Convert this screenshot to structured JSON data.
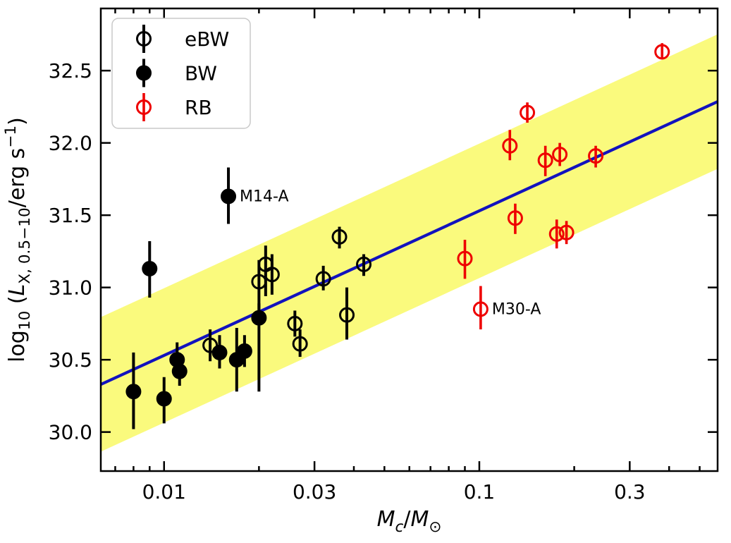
{
  "chart_data": {
    "type": "scatter",
    "title": "",
    "xlabel_plain": "M_c/M_sun",
    "ylabel_plain": "log10 (L_X,0.5-10 / erg s^-1)",
    "xlabel_parts": [
      {
        "t": "M",
        "italic": true
      },
      {
        "t": "c",
        "italic": true,
        "shift": "sub"
      },
      {
        "t": "/"
      },
      {
        "t": "M",
        "italic": true
      },
      {
        "t": "⊙",
        "shift": "sub"
      }
    ],
    "ylabel_parts": [
      {
        "t": "log"
      },
      {
        "t": "10",
        "shift": "sub"
      },
      {
        "t": " ("
      },
      {
        "t": "L",
        "italic": true
      },
      {
        "t": "X, 0.5−10",
        "shift": "sub"
      },
      {
        "t": "/erg s"
      },
      {
        "t": "−1",
        "shift": "sup"
      },
      {
        "t": ")"
      }
    ],
    "xscale": "log",
    "yscale": "linear",
    "xlim": [
      0.0063,
      0.57
    ],
    "ylim": [
      29.73,
      32.93
    ],
    "grid": false,
    "x_major_ticks": [
      0.01,
      0.03,
      0.1,
      0.3
    ],
    "x_major_tick_labels": [
      "0.01",
      "0.03",
      "0.1",
      "0.3"
    ],
    "x_minor_ticks": [
      0.007,
      0.008,
      0.009,
      0.02,
      0.04,
      0.05,
      0.06,
      0.07,
      0.08,
      0.09,
      0.2,
      0.4,
      0.5
    ],
    "y_ticks": [
      30.0,
      30.5,
      31.0,
      31.5,
      32.0,
      32.5
    ],
    "y_tick_labels": [
      "30.0",
      "30.5",
      "31.0",
      "31.5",
      "32.0",
      "32.5"
    ],
    "legend": {
      "position": "upper-left",
      "entries": [
        {
          "label": "eBW",
          "marker": "open-circle",
          "color": "#000000"
        },
        {
          "label": "BW",
          "marker": "filled-circle",
          "color": "#000000"
        },
        {
          "label": "RB",
          "marker": "open-circle",
          "color": "#ee0000"
        }
      ]
    },
    "series": [
      {
        "name": "eBW",
        "marker": "open-circle",
        "color": "#000000",
        "points": [
          {
            "m": 0.014,
            "l": 30.6,
            "lo": 30.49,
            "hi": 30.71
          },
          {
            "m": 0.02,
            "l": 31.04,
            "lo": 30.84,
            "hi": 31.19
          },
          {
            "m": 0.021,
            "l": 31.16,
            "lo": 30.94,
            "hi": 31.29
          },
          {
            "m": 0.022,
            "l": 31.09,
            "lo": 30.95,
            "hi": 31.23
          },
          {
            "m": 0.026,
            "l": 30.75,
            "lo": 30.66,
            "hi": 30.84
          },
          {
            "m": 0.027,
            "l": 30.61,
            "lo": 30.52,
            "hi": 30.71
          },
          {
            "m": 0.032,
            "l": 31.06,
            "lo": 30.98,
            "hi": 31.15
          },
          {
            "m": 0.036,
            "l": 31.35,
            "lo": 31.27,
            "hi": 31.42
          },
          {
            "m": 0.038,
            "l": 30.81,
            "lo": 30.64,
            "hi": 31.0
          },
          {
            "m": 0.043,
            "l": 31.16,
            "lo": 31.08,
            "hi": 31.23
          }
        ]
      },
      {
        "name": "BW",
        "marker": "filled-circle",
        "color": "#000000",
        "points": [
          {
            "m": 0.008,
            "l": 30.28,
            "lo": 30.02,
            "hi": 30.55
          },
          {
            "m": 0.009,
            "l": 31.13,
            "lo": 30.93,
            "hi": 31.32
          },
          {
            "m": 0.01,
            "l": 30.23,
            "lo": 30.06,
            "hi": 30.38
          },
          {
            "m": 0.011,
            "l": 30.5,
            "lo": 30.39,
            "hi": 30.62
          },
          {
            "m": 0.0112,
            "l": 30.42,
            "lo": 30.32,
            "hi": 30.49
          },
          {
            "m": 0.015,
            "l": 30.55,
            "lo": 30.44,
            "hi": 30.67
          },
          {
            "m": 0.016,
            "l": 31.63,
            "lo": 31.44,
            "hi": 31.83,
            "label": "M14-A"
          },
          {
            "m": 0.017,
            "l": 30.5,
            "lo": 30.28,
            "hi": 30.72
          },
          {
            "m": 0.018,
            "l": 30.56,
            "lo": 30.45,
            "hi": 30.67
          },
          {
            "m": 0.02,
            "l": 30.79,
            "lo": 30.28,
            "hi": 30.89
          }
        ]
      },
      {
        "name": "RB",
        "marker": "open-circle",
        "color": "#ee0000",
        "points": [
          {
            "m": 0.09,
            "l": 31.2,
            "lo": 31.06,
            "hi": 31.33
          },
          {
            "m": 0.101,
            "l": 30.85,
            "lo": 30.71,
            "hi": 31.01,
            "label": "M30-A"
          },
          {
            "m": 0.125,
            "l": 31.98,
            "lo": 31.88,
            "hi": 32.09
          },
          {
            "m": 0.13,
            "l": 31.48,
            "lo": 31.37,
            "hi": 31.58
          },
          {
            "m": 0.142,
            "l": 32.21,
            "lo": 32.14,
            "hi": 32.28
          },
          {
            "m": 0.162,
            "l": 31.88,
            "lo": 31.77,
            "hi": 31.98
          },
          {
            "m": 0.176,
            "l": 31.37,
            "lo": 31.27,
            "hi": 31.47
          },
          {
            "m": 0.18,
            "l": 31.92,
            "lo": 31.84,
            "hi": 32.0
          },
          {
            "m": 0.189,
            "l": 31.38,
            "lo": 31.3,
            "hi": 31.46
          },
          {
            "m": 0.234,
            "l": 31.91,
            "lo": 31.83,
            "hi": 31.98
          },
          {
            "m": 0.38,
            "l": 32.63,
            "lo": 32.59,
            "hi": 32.69
          }
        ]
      }
    ],
    "fit_line": {
      "type": "power-law",
      "slope_per_decade": 1.0,
      "anchor_m": 0.1,
      "anchor_l": 31.53,
      "color": "#1212be"
    },
    "band": {
      "halfwidth_dex": 0.465,
      "color": "#fafa7d"
    },
    "annotations": [
      {
        "text": "M14-A",
        "m": 0.016,
        "l": 31.63
      },
      {
        "text": "M30-A",
        "m": 0.101,
        "l": 30.85
      }
    ]
  }
}
